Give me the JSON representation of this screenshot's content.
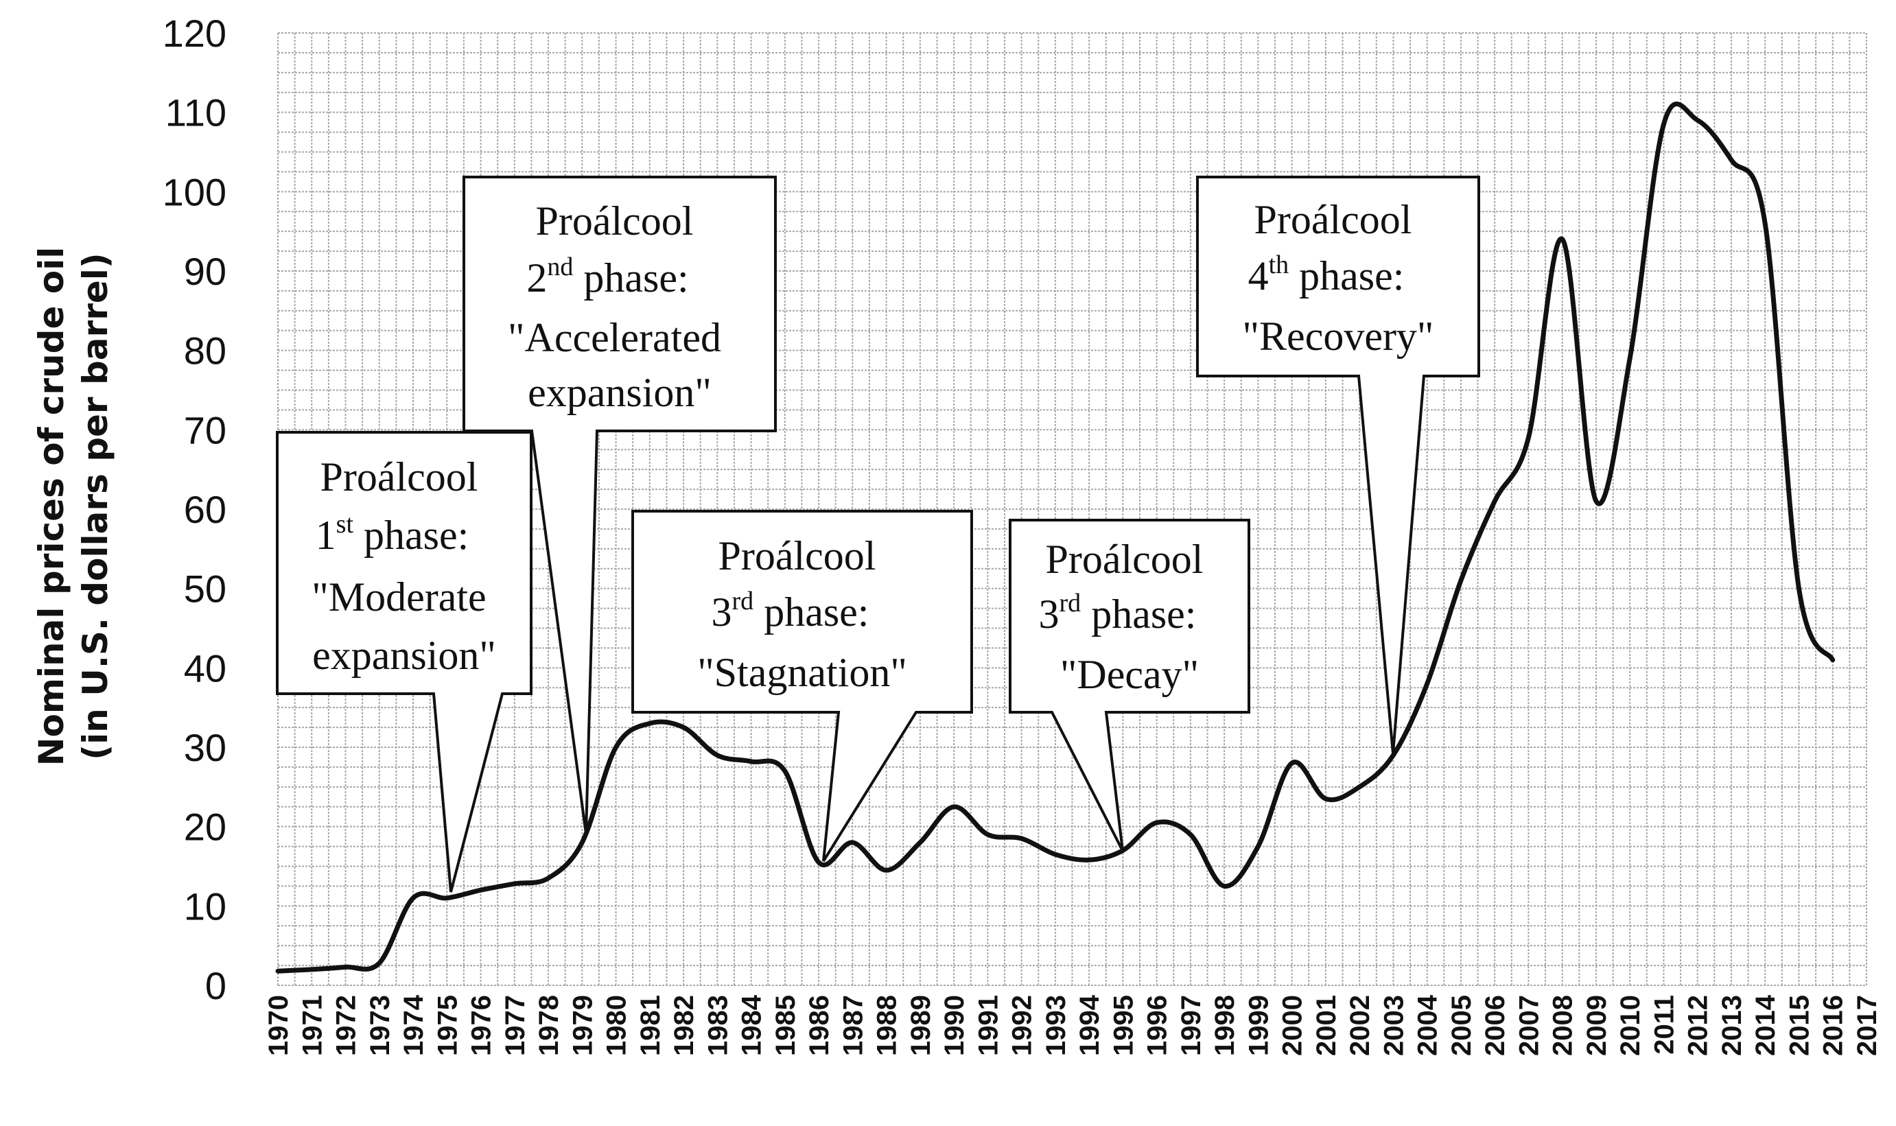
{
  "chart_data": {
    "type": "line",
    "ylabel_lines": [
      "Nominal prices of crude oil",
      "(in U.S. dollars per barrel)"
    ],
    "ylim": [
      0,
      120
    ],
    "yticks": [
      0,
      10,
      20,
      30,
      40,
      50,
      60,
      70,
      80,
      90,
      100,
      110,
      120
    ],
    "xlim": [
      1970,
      2017
    ],
    "xticks": [
      "1970",
      "1971",
      "1972",
      "1973",
      "1974",
      "1975",
      "1976",
      "1977",
      "1978",
      "1979",
      "1980",
      "1981",
      "1982",
      "1983",
      "1984",
      "1985",
      "1986",
      "1987",
      "1988",
      "1989",
      "1990",
      "1991",
      "1992",
      "1993",
      "1994",
      "1995",
      "1996",
      "1997",
      "1998",
      "1999",
      "2000",
      "2001",
      "2002",
      "2003",
      "2004",
      "2005",
      "2006",
      "2007",
      "2008",
      "2009",
      "2010",
      "2011",
      "2012",
      "2013",
      "2014",
      "2015",
      "2016",
      "2017"
    ],
    "grid": true,
    "series": [
      {
        "x": [
          1970,
          1971,
          1972,
          1973,
          1974,
          1975,
          1976,
          1977,
          1978,
          1979,
          1980,
          1981,
          1982,
          1983,
          1984,
          1985,
          1986,
          1987,
          1988,
          1989,
          1990,
          1991,
          1992,
          1993,
          1994,
          1995,
          1996,
          1997,
          1998,
          1999,
          2000,
          2001,
          2002,
          2003,
          2004,
          2005,
          2006,
          2007,
          2008,
          2009,
          2010,
          2011,
          2012,
          2013,
          2014,
          2015,
          2016
        ],
        "values": [
          1.8,
          2.0,
          2.3,
          2.8,
          11.0,
          11.0,
          12.0,
          12.8,
          13.5,
          18.0,
          30.0,
          33.0,
          32.5,
          29.0,
          28.2,
          27.0,
          15.5,
          18.0,
          14.5,
          18.0,
          22.5,
          19.0,
          18.5,
          16.5,
          15.8,
          17.0,
          20.5,
          19.0,
          12.5,
          17.5,
          28.0,
          23.5,
          25.0,
          29.0,
          38.0,
          51.0,
          61.0,
          69.0,
          94.0,
          61.0,
          79.0,
          108.5,
          109.0,
          104.0,
          96.0,
          50.0,
          41.0
        ]
      }
    ],
    "annotations": [
      {
        "lines": [
          "Proálcool",
          "1",
          "st",
          " phase:",
          "\"Moderate",
          "expansion\""
        ],
        "target_year": 1975
      },
      {
        "lines": [
          "Proálcool",
          "2",
          "nd",
          " phase:",
          "\"Accelerated",
          "expansion\""
        ],
        "target_year": 1979
      },
      {
        "lines": [
          "Proálcool",
          "3",
          "rd",
          " phase:",
          "\"Stagnation\""
        ],
        "target_year": 1986
      },
      {
        "lines": [
          "Proálcool",
          "3",
          "rd",
          " phase:",
          "\"Decay\""
        ],
        "target_year": 1995
      },
      {
        "lines": [
          "Proálcool",
          "4",
          "th",
          " phase:",
          "\"Recovery\""
        ],
        "target_year": 2003
      }
    ]
  }
}
